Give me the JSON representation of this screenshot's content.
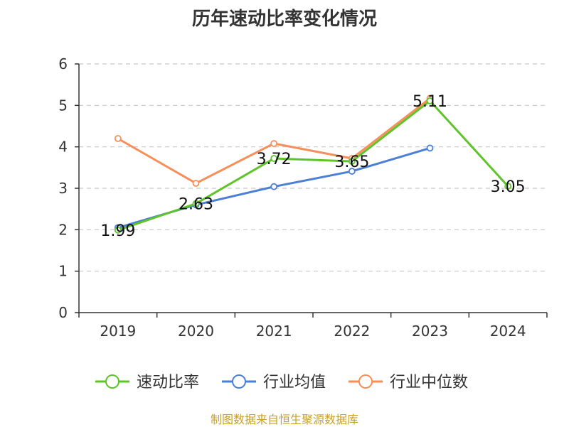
{
  "chart_data": {
    "type": "line",
    "title": "历年速动比率变化情况",
    "categories": [
      "2019",
      "2020",
      "2021",
      "2022",
      "2023",
      "2024"
    ],
    "ylim": [
      0,
      6
    ],
    "yticks": [
      "0",
      "1",
      "2",
      "3",
      "4",
      "5",
      "6"
    ],
    "grid": true,
    "legend_position": "bottom",
    "series": [
      {
        "name": "速动比率",
        "color": "#5ec42a",
        "values": [
          1.99,
          2.63,
          3.72,
          3.65,
          5.11,
          3.05
        ],
        "labels": [
          "1.99",
          "2.63",
          "3.72",
          "3.65",
          "5.11",
          "3.05"
        ]
      },
      {
        "name": "行业均值",
        "color": "#4c7fd6",
        "values": [
          2.05,
          2.6,
          3.04,
          3.41,
          3.97,
          null
        ]
      },
      {
        "name": "行业中位数",
        "color": "#f68f59",
        "values": [
          4.2,
          3.12,
          4.08,
          3.72,
          5.17,
          null
        ]
      }
    ]
  },
  "footer": {
    "source": "制图数据来自恒生聚源数据库"
  }
}
